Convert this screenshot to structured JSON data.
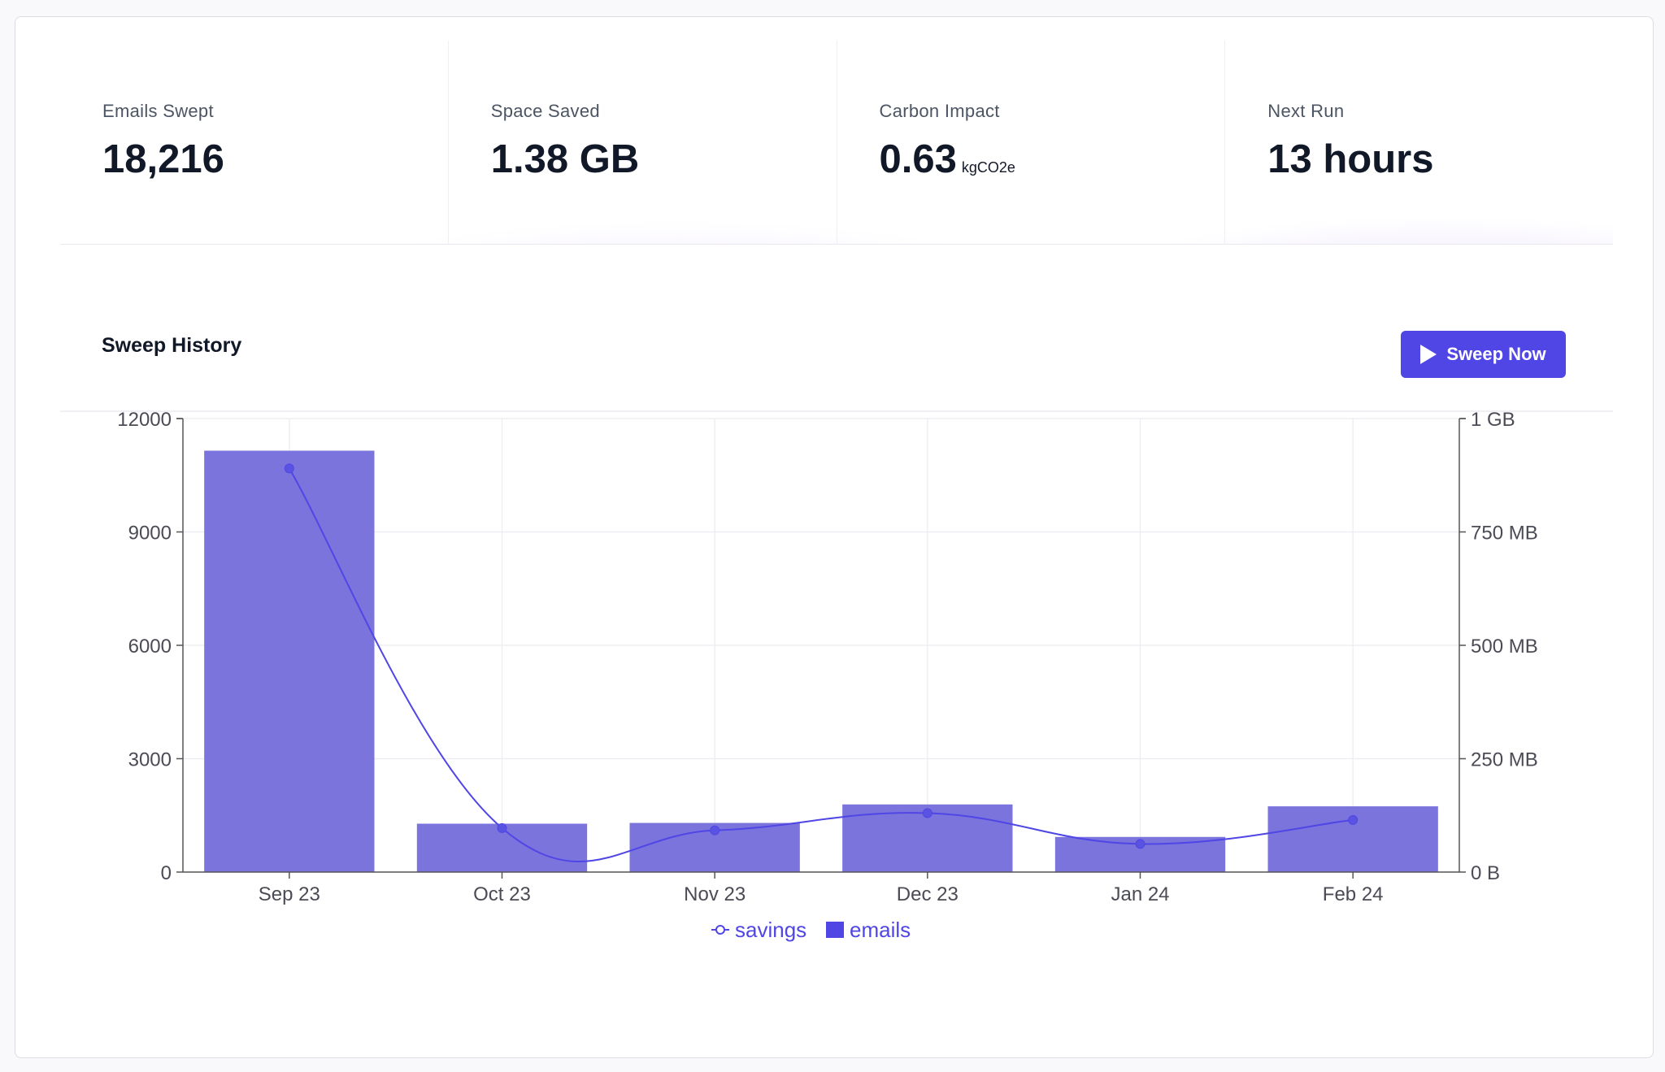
{
  "stats": [
    {
      "label": "Emails Swept",
      "value": "18,216",
      "unit": ""
    },
    {
      "label": "Space Saved",
      "value": "1.38 GB",
      "unit": ""
    },
    {
      "label": "Carbon Impact",
      "value": "0.63",
      "unit": "kgCO2e"
    },
    {
      "label": "Next Run",
      "value": "13 hours",
      "unit": ""
    }
  ],
  "section": {
    "title": "Sweep History"
  },
  "actions": {
    "sweep_now_label": "Sweep Now"
  },
  "colors": {
    "accent": "#4f46e5",
    "bar": "#7b74dd"
  },
  "chart_data": {
    "type": "bar",
    "categories": [
      "Sep 23",
      "Oct 23",
      "Nov 23",
      "Dec 23",
      "Jan 24",
      "Feb 24"
    ],
    "series": [
      {
        "name": "emails",
        "type": "bar",
        "axis": "left",
        "values": [
          11150,
          1280,
          1300,
          1790,
          930,
          1740
        ]
      },
      {
        "name": "savings",
        "type": "line",
        "axis": "right",
        "unit": "MB",
        "values": [
          890,
          97,
          92,
          130,
          62,
          115
        ]
      }
    ],
    "y_left": {
      "range": [
        0,
        12000
      ],
      "ticks": [
        "0",
        "3000",
        "6000",
        "9000",
        "12000"
      ]
    },
    "y_right": {
      "range": [
        0,
        1000
      ],
      "ticks": [
        "0 B",
        "250 MB",
        "500 MB",
        "750 MB",
        "1 GB"
      ]
    },
    "legend": {
      "placement": "bottom-center",
      "items": [
        "savings",
        "emails"
      ]
    },
    "grid": true
  }
}
